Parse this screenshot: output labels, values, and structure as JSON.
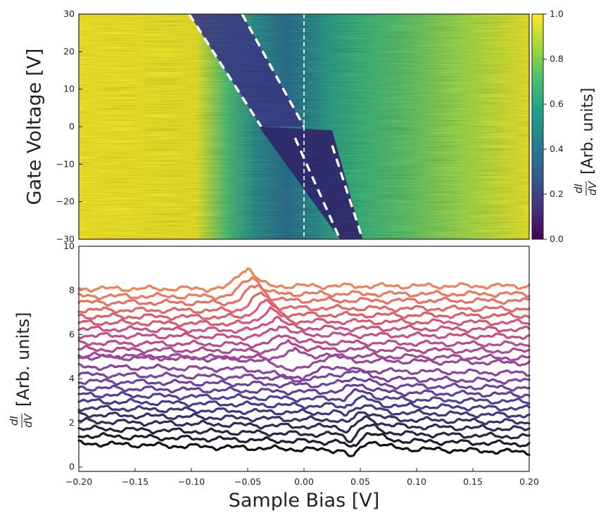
{
  "chart_data": [
    {
      "type": "heatmap",
      "ylabel": "Gate Voltage [V]",
      "xlim": [
        -0.2,
        0.2
      ],
      "ylim": [
        -30,
        30
      ],
      "yticks": [
        "30",
        "20",
        "10",
        "0",
        "−10",
        "−20",
        "−30"
      ],
      "yticks_values": [
        30,
        20,
        10,
        0,
        -10,
        -20,
        -30
      ],
      "colormap": "viridis",
      "colorbar": {
        "label": "dI/dV [Arb. units]",
        "label_fraction": "dI",
        "label_fraction_den": "dV",
        "label_tail": "[Arb. units]",
        "range": [
          0.0,
          1.0
        ],
        "ticks": [
          "1.0",
          "0.8",
          "0.6",
          "0.4",
          "0.2",
          "0.0"
        ],
        "ticks_values": [
          1.0,
          0.8,
          0.6,
          0.4,
          0.2,
          0.0
        ]
      },
      "guide_lines": [
        {
          "style": "dashed",
          "from": [
            -0.102,
            30
          ],
          "to": [
            -0.038,
            0
          ]
        },
        {
          "style": "dashed",
          "from": [
            -0.055,
            30
          ],
          "to": [
            0.0,
            0
          ]
        },
        {
          "style": "dashed",
          "from": [
            -0.008,
            -3
          ],
          "to": [
            0.032,
            -30
          ]
        },
        {
          "style": "dashed",
          "from": [
            0.025,
            -5
          ],
          "to": [
            0.052,
            -30
          ]
        },
        {
          "style": "dashed-thin",
          "from": [
            0.0,
            30
          ],
          "to": [
            0.0,
            -30
          ]
        }
      ]
    },
    {
      "type": "line",
      "xlabel": "Sample Bias [V]",
      "ylabel": "dI/dV [Arb. units]",
      "ylabel_fraction": "dI",
      "ylabel_fraction_den": "dV",
      "ylabel_tail": "[Arb. units]",
      "xlim": [
        -0.2,
        0.2
      ],
      "ylim": [
        -0.2,
        10
      ],
      "xticks": [
        "−0.20",
        "−0.15",
        "−0.10",
        "−0.05",
        "0.00",
        "0.05",
        "0.10",
        "0.15",
        "0.20"
      ],
      "xticks_values": [
        -0.2,
        -0.15,
        -0.1,
        -0.05,
        0.0,
        0.05,
        0.1,
        0.15,
        0.2
      ],
      "yticks": [
        "0",
        "2",
        "4",
        "6",
        "8",
        "10"
      ],
      "yticks_values": [
        0,
        2,
        4,
        6,
        8,
        10
      ],
      "series_count": 24,
      "offsets": [
        0.95,
        1.3,
        1.62,
        1.95,
        2.25,
        2.55,
        2.85,
        3.15,
        3.45,
        3.75,
        4.05,
        4.4,
        4.85,
        5.05,
        5.35,
        5.65,
        6.0,
        6.3,
        6.6,
        6.9,
        7.2,
        7.55,
        7.85,
        8.2
      ],
      "colors": [
        "#111111",
        "#1c1c2a",
        "#262440",
        "#2f2b56",
        "#38306a",
        "#41357c",
        "#4b3a8c",
        "#553e95",
        "#62409a",
        "#6f429c",
        "#7d439c",
        "#8a449b",
        "#96459a",
        "#a24698",
        "#ae4894",
        "#b94b8d",
        "#c34e86",
        "#cc527e",
        "#d45776",
        "#db5e6e",
        "#e16667",
        "#e66f61",
        "#ea785c",
        "#ee8158"
      ]
    }
  ]
}
